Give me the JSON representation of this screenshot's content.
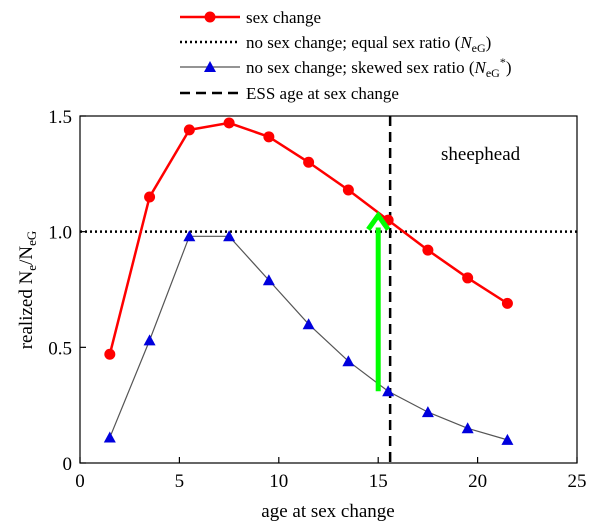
{
  "chart_data": {
    "type": "line",
    "xlabel": "age at sex change",
    "ylabel": {
      "base": "realized N",
      "sub1": "e",
      "mid": "/N",
      "sub2": "eG"
    },
    "xlim": [
      0,
      25
    ],
    "ylim": [
      0,
      1.5
    ],
    "xticks": [
      "0",
      "5",
      "10",
      "15",
      "20",
      "25"
    ],
    "yticks": [
      "0",
      "0.5",
      "1.0",
      "1.5"
    ],
    "xtick_values": [
      0,
      5,
      10,
      15,
      20,
      25
    ],
    "ytick_values": [
      0,
      0.5,
      1.0,
      1.5
    ],
    "grid": false,
    "legend_position": "top",
    "annotation": "sheephead",
    "series": [
      {
        "name": "sex change",
        "color": "#ff0000",
        "marker": "circle",
        "x": [
          1.5,
          3.5,
          5.5,
          7.5,
          9.5,
          11.5,
          13.5,
          15.5,
          17.5,
          19.5,
          21.5
        ],
        "values": [
          0.47,
          1.15,
          1.44,
          1.47,
          1.41,
          1.3,
          1.18,
          1.05,
          0.92,
          0.8,
          0.69
        ]
      },
      {
        "name": "no sex change; skewed sex ratio",
        "color": "#555555",
        "marker_color": "#0000dd",
        "marker": "triangle",
        "x": [
          1.5,
          3.5,
          5.5,
          7.5,
          9.5,
          11.5,
          13.5,
          15.5,
          17.5,
          19.5,
          21.5
        ],
        "values": [
          0.11,
          0.53,
          0.98,
          0.98,
          0.79,
          0.6,
          0.44,
          0.31,
          0.22,
          0.15,
          0.1
        ]
      }
    ],
    "reference_lines": {
      "equal_ratio": {
        "name": "no sex change; equal sex ratio",
        "y": 1.0,
        "style": "dotted"
      },
      "ess": {
        "name": "ESS age at sex change",
        "x": 15.6,
        "style": "dashed"
      }
    },
    "arrow": {
      "color": "#00ff00",
      "x": 15.0,
      "y_from": 0.31,
      "y_to": 1.07
    }
  },
  "legend": [
    {
      "text": "sex change",
      "suffix": ""
    },
    {
      "text": "no sex change; equal sex ratio (",
      "italic": "N",
      "sub": "eG",
      "sup": "",
      "suffix": ")"
    },
    {
      "text": "no sex change; skewed sex ratio (",
      "italic": "N",
      "sub": "eG",
      "sup": "*",
      "suffix": ")"
    },
    {
      "text": "ESS age at sex change",
      "suffix": ""
    }
  ]
}
